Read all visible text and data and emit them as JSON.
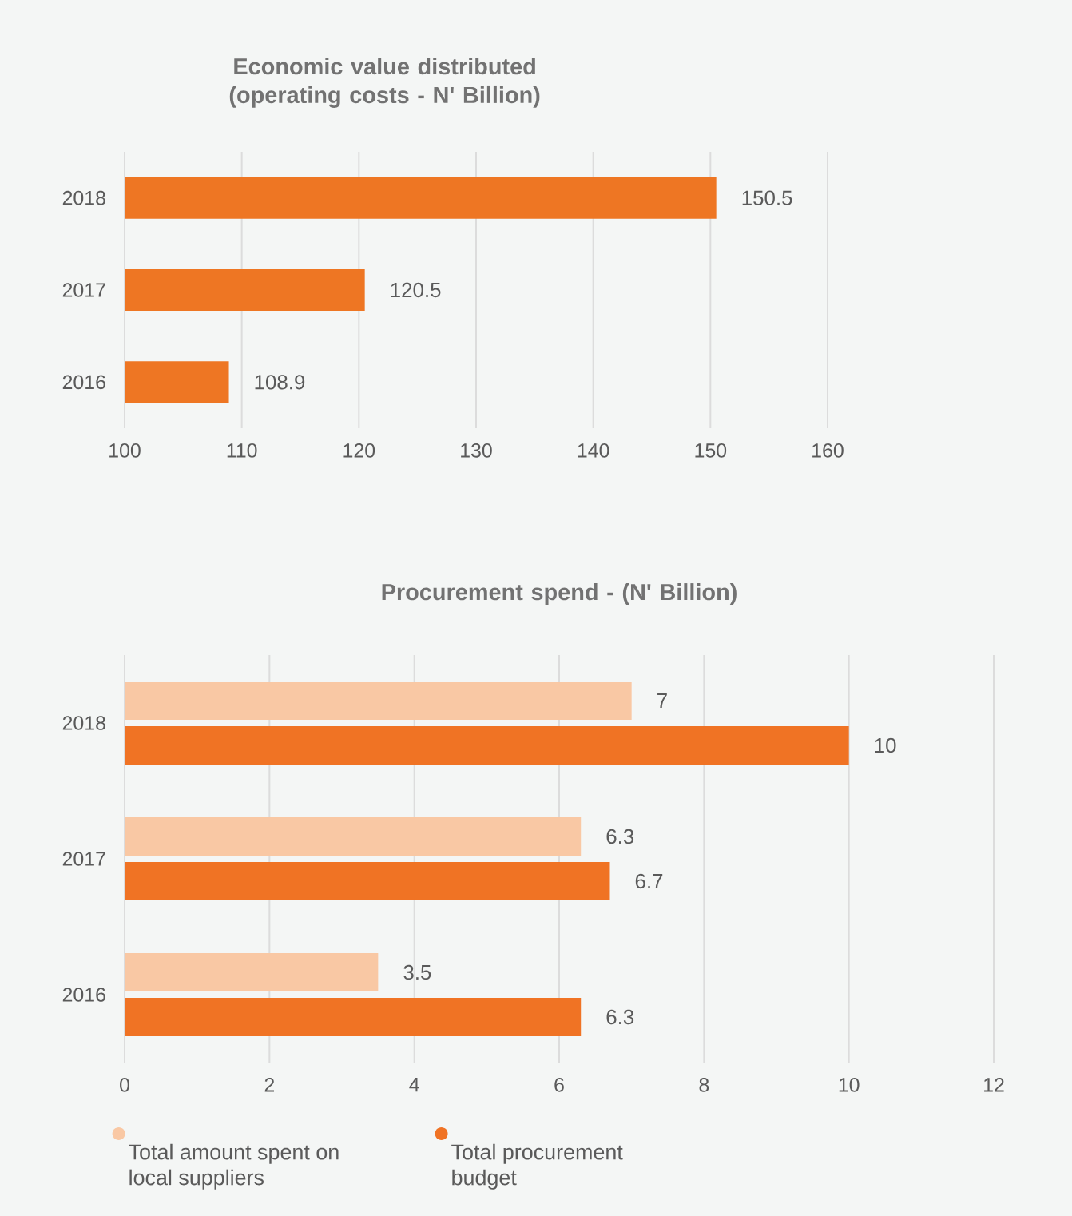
{
  "chart_data": [
    {
      "type": "bar",
      "orientation": "horizontal",
      "title": "Economic value distributed (operating costs - N' Billion)",
      "categories": [
        "2018",
        "2017",
        "2016"
      ],
      "values": [
        150.5,
        120.5,
        108.9
      ],
      "color": "#ee7623",
      "xlim": [
        100,
        160
      ],
      "xticks": [
        100,
        110,
        120,
        130,
        140,
        150,
        160
      ],
      "grid": "x",
      "data_labels": true
    },
    {
      "type": "bar",
      "orientation": "horizontal",
      "title": "Procurement spend - (N' Billion)",
      "categories": [
        "2018",
        "2017",
        "2016"
      ],
      "series": [
        {
          "name": "Total amount spent on local suppliers",
          "color": "#f9c8a4",
          "values": [
            7,
            6.3,
            3.5
          ]
        },
        {
          "name": "Total procurement budget",
          "color": "#f07324",
          "values": [
            10,
            6.7,
            6.3
          ]
        }
      ],
      "xlim": [
        0,
        12
      ],
      "xticks": [
        0,
        2,
        4,
        6,
        8,
        10,
        12
      ],
      "grid": "x",
      "data_labels": true,
      "legend": "bottom"
    }
  ]
}
